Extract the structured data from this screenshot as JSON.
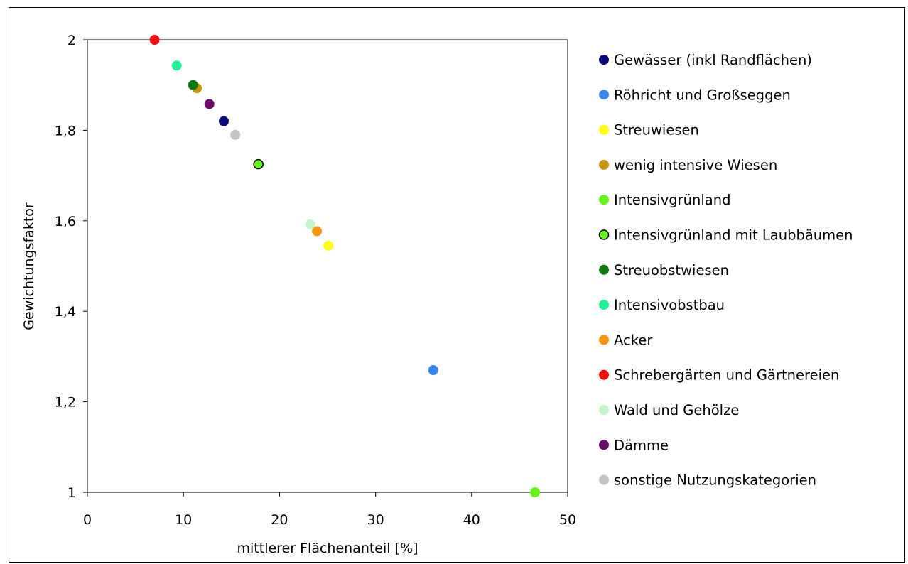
{
  "chart_data": {
    "type": "scatter",
    "title": "",
    "xlabel": "mittlerer Flächenanteil [%]",
    "ylabel": "Gewichtungsfaktor",
    "xlim": [
      0,
      50
    ],
    "ylim": [
      1,
      2
    ],
    "xticks": [
      "0",
      "10",
      "20",
      "30",
      "40",
      "50"
    ],
    "yticks": [
      "1",
      "1,2",
      "1,4",
      "1,6",
      "1,8",
      "2"
    ],
    "grid": false,
    "legend_position": "right",
    "series": [
      {
        "name": "Gewässer (inkl Randflächen)",
        "color": "#0a0a7a",
        "outline": false,
        "x": 14.2,
        "y": 1.82
      },
      {
        "name": "Röhricht und Großseggen",
        "color": "#3a87f0",
        "outline": false,
        "x": 36.0,
        "y": 1.27
      },
      {
        "name": "Streuwiesen",
        "color": "#ffff14",
        "outline": false,
        "x": 25.1,
        "y": 1.545
      },
      {
        "name": "wenig intensive Wiesen",
        "color": "#c8950c",
        "outline": false,
        "x": 11.4,
        "y": 1.893
      },
      {
        "name": "Intensivgrünland",
        "color": "#66f21c",
        "outline": false,
        "x": 46.6,
        "y": 1.0
      },
      {
        "name": "Intensivgrünland mit Laubbäumen",
        "color": "#66f21c",
        "outline": true,
        "x": 17.8,
        "y": 1.725
      },
      {
        "name": "Streuobstwiesen",
        "color": "#0e7a12",
        "outline": false,
        "x": 11.0,
        "y": 1.9
      },
      {
        "name": "Intensivobstbau",
        "color": "#22f096",
        "outline": false,
        "x": 9.3,
        "y": 1.943
      },
      {
        "name": "Acker",
        "color": "#f99514",
        "outline": false,
        "x": 23.9,
        "y": 1.577
      },
      {
        "name": "Schrebergärten und Gärtnereien",
        "color": "#f70c0c",
        "outline": false,
        "x": 7.0,
        "y": 2.0
      },
      {
        "name": "Wald und Gehölze",
        "color": "#c6f5cc",
        "outline": false,
        "x": 23.2,
        "y": 1.592
      },
      {
        "name": "Dämme",
        "color": "#6b0c6b",
        "outline": false,
        "x": 12.7,
        "y": 1.858
      },
      {
        "name": "sonstige Nutzungskategorien",
        "color": "#c4c4c4",
        "outline": false,
        "x": 15.4,
        "y": 1.79
      }
    ]
  }
}
